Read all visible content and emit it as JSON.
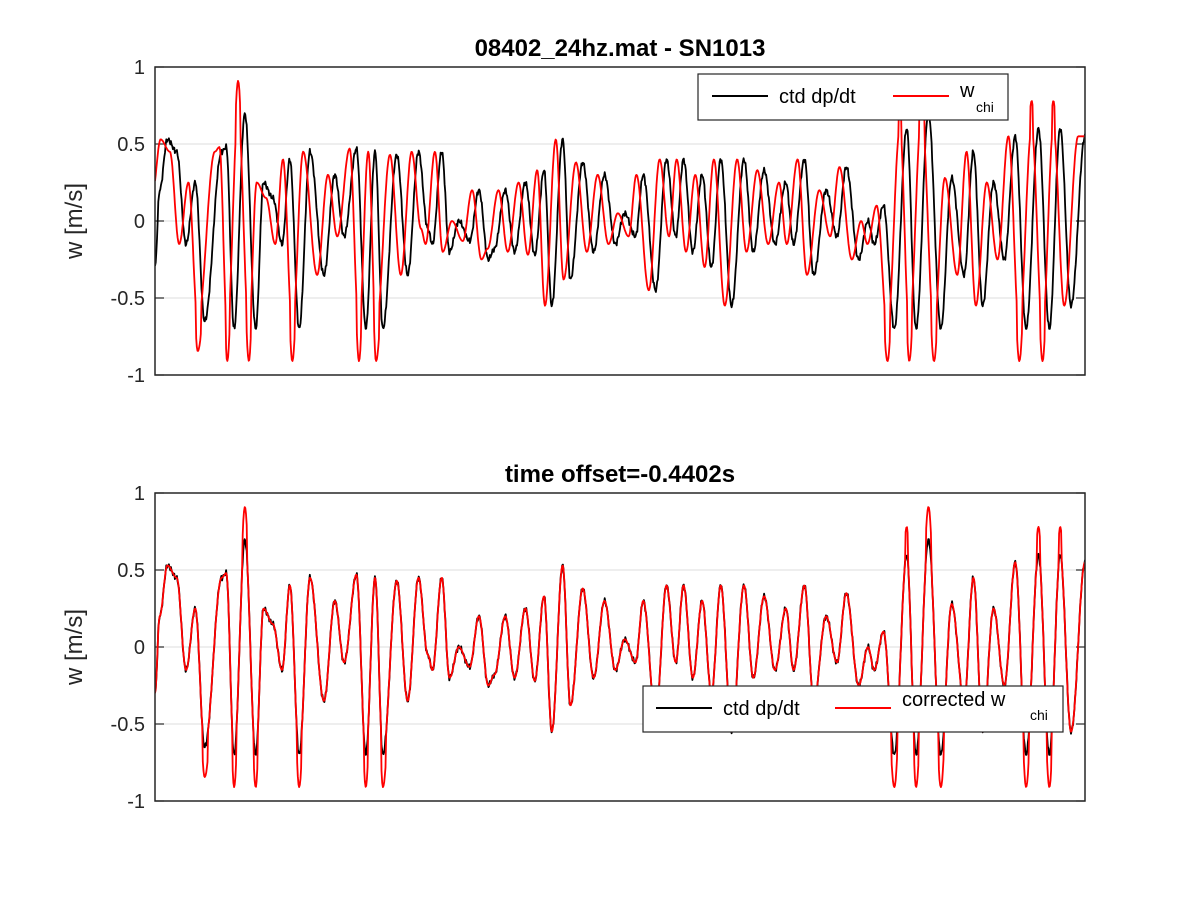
{
  "chart_data": [
    {
      "type": "line",
      "title": "08402_24hz.mat - SN1013",
      "xlabel": "",
      "ylabel": "w [m/s]",
      "ylim": [
        -1,
        1
      ],
      "yticks": [
        -1,
        -0.5,
        0,
        0.5,
        1
      ],
      "ytick_labels": [
        "-1",
        "-0.5",
        "0",
        "0.5",
        "1"
      ],
      "grid": "horizontal",
      "legend": {
        "position": "top-right",
        "entries": [
          {
            "label": "ctd dp/dt",
            "sub": "",
            "color": "#000000"
          },
          {
            "label": "w",
            "sub": "chi",
            "color": "#ff0000"
          }
        ]
      },
      "series": [
        {
          "name": "ctd dp/dt",
          "color": "#000000",
          "role": "ctd",
          "shift": 0
        },
        {
          "name": "w chi",
          "color": "#ff0000",
          "role": "chi",
          "shift": 0.4402
        }
      ]
    },
    {
      "type": "line",
      "title": "time offset=-0.4402s",
      "xlabel": "",
      "ylabel": "w [m/s]",
      "ylim": [
        -1,
        1
      ],
      "yticks": [
        -1,
        -0.5,
        0,
        0.5,
        1
      ],
      "ytick_labels": [
        "-1",
        "-0.5",
        "0",
        "0.5",
        "1"
      ],
      "grid": "horizontal",
      "legend": {
        "position": "bottom-right",
        "entries": [
          {
            "label": "ctd dp/dt",
            "sub": "",
            "color": "#000000"
          },
          {
            "label": "corrected w",
            "sub": "chi",
            "color": "#ff0000"
          }
        ]
      },
      "series": [
        {
          "name": "ctd dp/dt",
          "color": "#000000",
          "role": "ctd",
          "shift": 0
        },
        {
          "name": "corrected w chi",
          "color": "#ff0000",
          "role": "chi",
          "shift": 0
        }
      ]
    }
  ],
  "signal": {
    "t_range": [
      0,
      60
    ],
    "ctd_clip": [
      -0.7,
      0.7
    ],
    "keypoints": [
      [
        0.0,
        -0.3
      ],
      [
        0.3,
        0.2
      ],
      [
        0.8,
        0.53
      ],
      [
        1.4,
        0.45
      ],
      [
        2.0,
        -0.15
      ],
      [
        2.6,
        0.25
      ],
      [
        3.2,
        -0.65
      ],
      [
        4.3,
        0.45
      ],
      [
        4.6,
        0.48
      ],
      [
        5.1,
        -0.7
      ],
      [
        5.8,
        0.7
      ],
      [
        6.5,
        -0.7
      ],
      [
        7.0,
        0.25
      ],
      [
        7.6,
        0.15
      ],
      [
        8.2,
        -0.15
      ],
      [
        8.7,
        0.4
      ],
      [
        9.3,
        -0.7
      ],
      [
        10.0,
        0.45
      ],
      [
        10.9,
        -0.35
      ],
      [
        11.6,
        0.3
      ],
      [
        12.2,
        -0.1
      ],
      [
        13.0,
        0.47
      ],
      [
        13.6,
        -0.7
      ],
      [
        14.2,
        0.45
      ],
      [
        14.7,
        -0.7
      ],
      [
        15.6,
        0.43
      ],
      [
        16.3,
        -0.35
      ],
      [
        17.0,
        0.45
      ],
      [
        17.6,
        -0.05
      ],
      [
        17.9,
        -0.15
      ],
      [
        18.5,
        0.45
      ],
      [
        19.0,
        -0.2
      ],
      [
        19.6,
        0.0
      ],
      [
        20.3,
        -0.13
      ],
      [
        20.9,
        0.2
      ],
      [
        21.5,
        -0.25
      ],
      [
        21.9,
        -0.18
      ],
      [
        22.6,
        0.2
      ],
      [
        23.2,
        -0.2
      ],
      [
        23.9,
        0.25
      ],
      [
        24.5,
        -0.22
      ],
      [
        25.1,
        0.33
      ],
      [
        25.6,
        -0.55
      ],
      [
        26.3,
        0.53
      ],
      [
        26.8,
        -0.38
      ],
      [
        27.6,
        0.38
      ],
      [
        28.3,
        -0.2
      ],
      [
        29.0,
        0.3
      ],
      [
        29.7,
        -0.15
      ],
      [
        30.3,
        0.05
      ],
      [
        31.0,
        -0.1
      ],
      [
        31.5,
        0.3
      ],
      [
        32.3,
        -0.45
      ],
      [
        33.0,
        0.4
      ],
      [
        33.6,
        -0.1
      ],
      [
        34.1,
        0.4
      ],
      [
        34.7,
        -0.2
      ],
      [
        35.3,
        0.3
      ],
      [
        35.9,
        -0.3
      ],
      [
        36.5,
        0.4
      ],
      [
        37.2,
        -0.55
      ],
      [
        38.0,
        0.4
      ],
      [
        38.6,
        -0.2
      ],
      [
        39.3,
        0.33
      ],
      [
        40.0,
        -0.15
      ],
      [
        40.7,
        0.25
      ],
      [
        41.2,
        -0.15
      ],
      [
        41.9,
        0.4
      ],
      [
        42.5,
        -0.35
      ],
      [
        43.3,
        0.2
      ],
      [
        44.0,
        -0.1
      ],
      [
        44.6,
        0.35
      ],
      [
        45.4,
        -0.25
      ],
      [
        46.0,
        0.0
      ],
      [
        46.4,
        -0.15
      ],
      [
        47.0,
        0.1
      ],
      [
        47.7,
        -0.7
      ],
      [
        48.5,
        0.6
      ],
      [
        49.1,
        -0.7
      ],
      [
        49.9,
        0.7
      ],
      [
        50.7,
        -0.7
      ],
      [
        51.4,
        0.28
      ],
      [
        52.2,
        -0.35
      ],
      [
        52.8,
        0.45
      ],
      [
        53.4,
        -0.55
      ],
      [
        54.1,
        0.25
      ],
      [
        54.8,
        -0.25
      ],
      [
        55.5,
        0.55
      ],
      [
        56.2,
        -0.7
      ],
      [
        57.0,
        0.6
      ],
      [
        57.7,
        -0.7
      ],
      [
        58.4,
        0.6
      ],
      [
        59.1,
        -0.55
      ],
      [
        60.0,
        0.55
      ]
    ]
  }
}
